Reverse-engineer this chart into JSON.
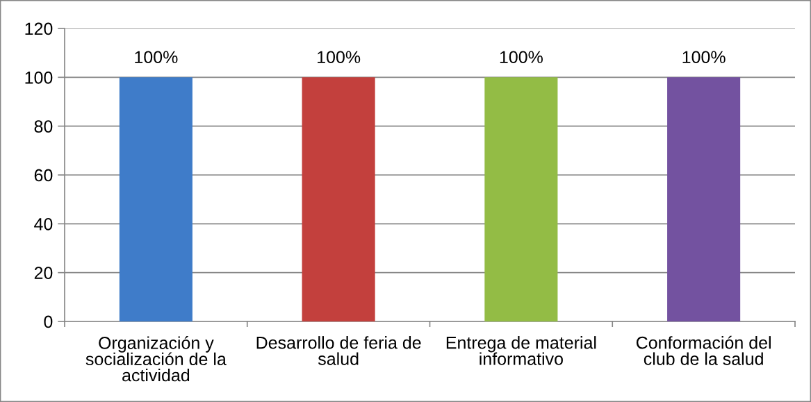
{
  "chart_data": {
    "type": "bar",
    "categories": [
      "Organización y socialización de la actividad",
      "Desarrollo de feria de salud",
      "Entrega de material informativo",
      "Conformación del club de la salud"
    ],
    "values": [
      100,
      100,
      100,
      100
    ],
    "colors": [
      "#3f7cc9",
      "#c3403d",
      "#93bc45",
      "#7352a0"
    ],
    "value_labels": [
      "100%",
      "100%",
      "100%",
      "100%"
    ],
    "ylim": [
      0,
      120
    ],
    "yticks": [
      0,
      20,
      40,
      60,
      80,
      100,
      120
    ],
    "grid": "y"
  }
}
